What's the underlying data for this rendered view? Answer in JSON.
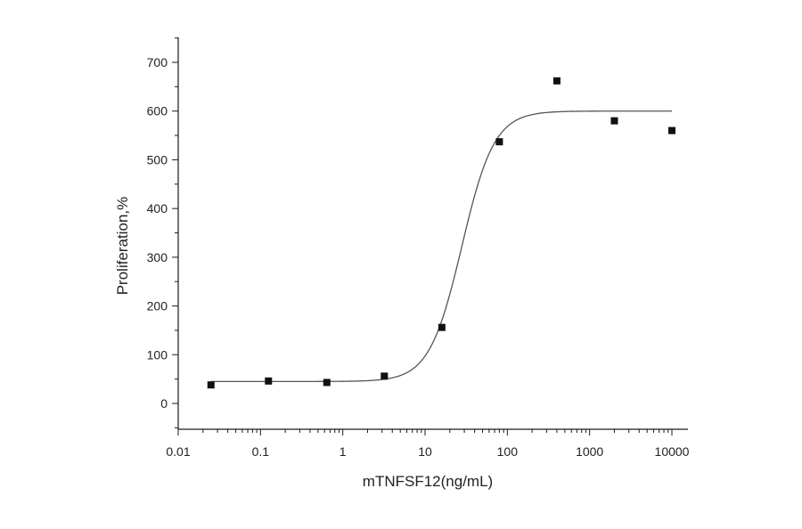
{
  "chart_data": {
    "type": "scatter",
    "title": "",
    "xlabel": "mTNFSF12(ng/mL)",
    "ylabel": "Proliferation,%",
    "x_scale": "log",
    "xlim": [
      0.01,
      10000
    ],
    "ylim": [
      -50,
      750
    ],
    "x_ticks": [
      0.01,
      0.1,
      1,
      10,
      100,
      1000,
      10000
    ],
    "x_tick_labels": [
      "0.01",
      "0.1",
      "1",
      "10",
      "100",
      "1000",
      "10000"
    ],
    "y_ticks": [
      0,
      100,
      200,
      300,
      400,
      500,
      600,
      700
    ],
    "y_tick_labels": [
      "0",
      "100",
      "200",
      "300",
      "400",
      "500",
      "600",
      "700"
    ],
    "grid": false,
    "series": [
      {
        "type": "scatter",
        "x": [
          0.025,
          0.125,
          0.64,
          3.2,
          16,
          80,
          400,
          2000,
          10000
        ],
        "y": [
          38,
          46,
          43,
          56,
          156,
          537,
          662,
          580,
          560
        ]
      }
    ],
    "fit": {
      "model": "4PL",
      "bottom": 45,
      "top": 600,
      "ec50": 28,
      "hill": 2.2
    }
  }
}
